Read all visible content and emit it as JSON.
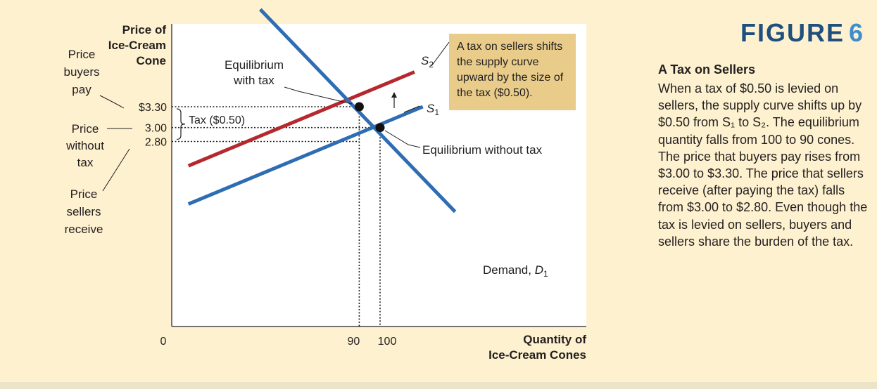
{
  "figure": {
    "label": "FIGURE",
    "number": "6",
    "title": "A Tax on Sellers",
    "caption": "When a tax of $0.50 is levied on sellers, the supply curve shifts up by $0.50 from S₁ to S₂. The equilibrium quantity falls from 100 to 90 cones. The price that buyers pay rises from $3.00 to $3.30. The price that sellers receive (after paying the tax) falls from $3.00 to $2.80. Even though the tax is levied on sellers, buyers and sellers share the burden of the tax."
  },
  "chart_data": {
    "type": "line",
    "y_title": [
      "Price of",
      "Ice-Cream",
      "Cone"
    ],
    "x_title": [
      "Quantity of",
      "Ice-Cream Cones"
    ],
    "origin_label": "0",
    "grid": false,
    "x_ticks": [
      {
        "value": 90,
        "label": "90"
      },
      {
        "value": 100,
        "label": "100"
      }
    ],
    "y_ticks": [
      {
        "value": 3.3,
        "label": "$3.30"
      },
      {
        "value": 3.0,
        "label": "3.00"
      },
      {
        "value": 2.8,
        "label": "2.80"
      }
    ],
    "series": [
      {
        "key": "demand",
        "name": "Demand, D₁",
        "color": "#2e6db3",
        "x": [
          42.5,
          136.0
        ],
        "y": [
          4.7,
          1.79
        ]
      },
      {
        "key": "s1",
        "name": "S₁",
        "color": "#2e6db3",
        "x": [
          8.0,
          120.5
        ],
        "y": [
          1.9,
          3.3
        ]
      },
      {
        "key": "s2",
        "name": "S₂",
        "color": "#b5282e",
        "x": [
          8.0,
          116.5
        ],
        "y": [
          2.45,
          3.8
        ]
      }
    ],
    "equilibria": [
      {
        "key": "with_tax",
        "label": [
          "Equilibrium",
          "with tax"
        ],
        "x": 90,
        "y": 3.3
      },
      {
        "key": "without_tax",
        "label": [
          "Equilibrium without tax"
        ],
        "x": 100,
        "y": 3.0
      }
    ],
    "tax_label": "Tax ($0.50)",
    "tax_amount": 0.5,
    "callout": [
      "A tax on sellers shifts",
      "the supply curve",
      "upward by the size of",
      "the tax ($0.50)."
    ],
    "side_labels": {
      "buyers_pay": [
        "Price",
        "buyers",
        "pay"
      ],
      "without_tax": [
        "Price",
        "without",
        "tax"
      ],
      "sellers_receive": [
        "Price",
        "sellers",
        "receive"
      ]
    },
    "colors": {
      "blue": "#2e6db3",
      "red": "#b5282e",
      "callout_bg": "#e9cc8a",
      "background": "#fdf1cf"
    }
  }
}
